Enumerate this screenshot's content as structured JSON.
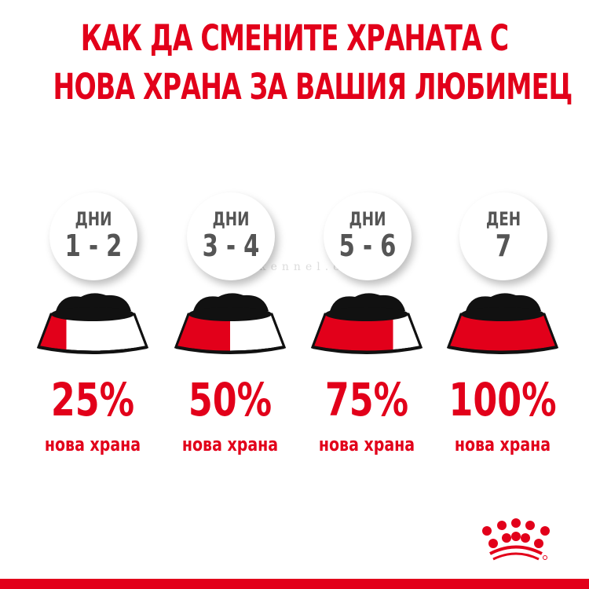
{
  "title_lines": [
    "КАК ДА СМЕНИТЕ ХРАНАТА С",
    "НОВА ХРАНА ЗА ВАШИЯ ЛЮБИМЕЦ"
  ],
  "steps": [
    {
      "day_label": "ДНИ",
      "day_range": "1 - 2",
      "percent": "25%",
      "new_food_fraction": 0.25,
      "caption": "нова храна"
    },
    {
      "day_label": "ДНИ",
      "day_range": "3 - 4",
      "percent": "50%",
      "new_food_fraction": 0.5,
      "caption": "нова храна"
    },
    {
      "day_label": "ДНИ",
      "day_range": "5 - 6",
      "percent": "75%",
      "new_food_fraction": 0.75,
      "caption": "нова храна"
    },
    {
      "day_label": "ДЕН",
      "day_range": "7",
      "percent": "100%",
      "new_food_fraction": 1.0,
      "caption": "нова храна"
    }
  ],
  "watermark": "ariakennel.com",
  "colors": {
    "brand_red": "#e2001a",
    "text_gray": "#555555",
    "food": "#111111"
  },
  "logo": "royal-canin-crown"
}
